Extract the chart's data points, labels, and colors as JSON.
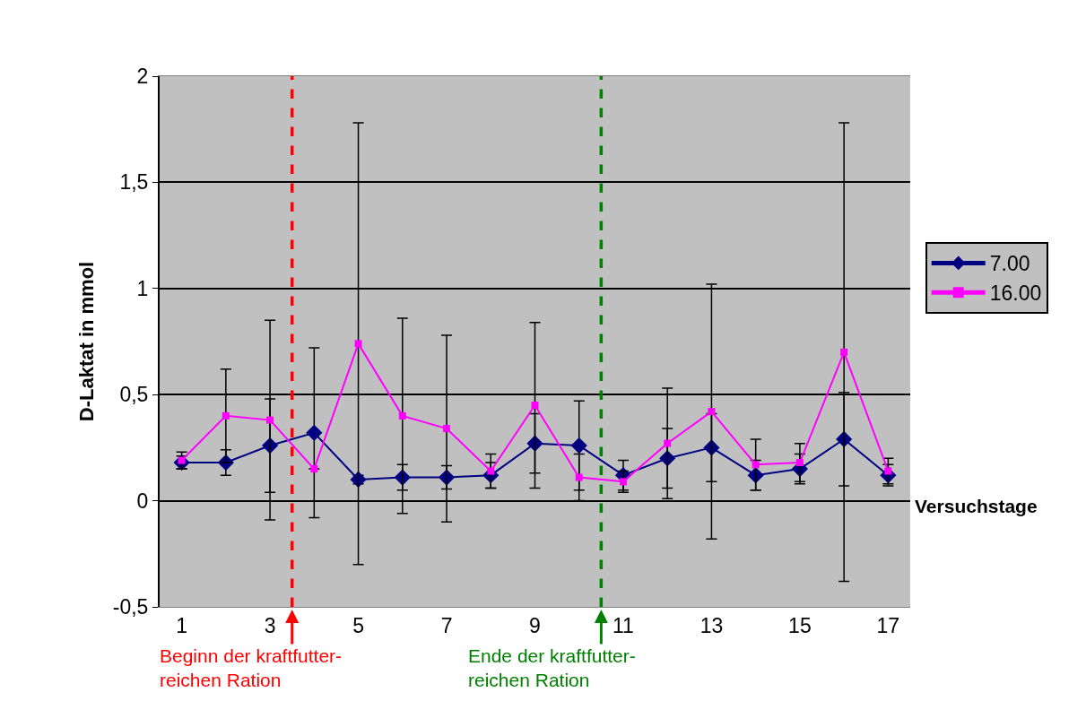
{
  "chart_data": {
    "type": "line",
    "ylabel": "D-Laktat in mmol",
    "xlabel": "Versuchstage",
    "x": [
      1,
      2,
      3,
      4,
      5,
      6,
      7,
      8,
      9,
      10,
      11,
      12,
      13,
      14,
      15,
      16,
      17
    ],
    "xlim": [
      0.5,
      17.5
    ],
    "xticks": [
      1,
      3,
      5,
      7,
      9,
      11,
      13,
      15,
      17
    ],
    "ylim": [
      -0.5,
      2
    ],
    "yticks": [
      {
        "value": -0.5,
        "label": "-0,5"
      },
      0,
      {
        "value": 0.5,
        "label": "0,5"
      },
      1,
      {
        "value": 1.5,
        "label": "1,5"
      },
      2
    ],
    "grid": "y",
    "legend": "right",
    "line_style": "solid",
    "series": [
      {
        "name": "7.00",
        "color": "#000080",
        "marker": "diamond",
        "values": [
          0.18,
          0.18,
          0.26,
          0.32,
          0.1,
          0.11,
          0.11,
          0.12,
          0.27,
          0.26,
          0.12,
          0.2,
          0.25,
          0.12,
          0.15,
          0.29,
          0.12
        ],
        "errors": [
          0.03,
          0.06,
          0.22,
          0.4,
          0.02,
          0.06,
          0.055,
          0.06,
          0.14,
          0.21,
          0.07,
          0.14,
          0.16,
          0.07,
          0.07,
          0.22,
          0.05
        ]
      },
      {
        "name": "16.00",
        "color": "#ff00ff",
        "marker": "square",
        "values": [
          0.19,
          0.4,
          0.38,
          0.15,
          0.74,
          0.4,
          0.34,
          0.14,
          0.45,
          0.11,
          0.09,
          0.27,
          0.42,
          0.17,
          0.18,
          0.7,
          0.14
        ],
        "errors": [
          0.04,
          0.22,
          0.47,
          null,
          1.04,
          0.46,
          0.44,
          0.08,
          0.39,
          0.11,
          0.05,
          0.26,
          0.6,
          0.12,
          0.09,
          1.08,
          0.06
        ]
      }
    ],
    "ref_lines": [
      {
        "axis": "x",
        "value": 3.5,
        "label": "Beginn der kraftfutter-\nreichen Ration",
        "color": "#ff0000",
        "line_style": "dashed"
      },
      {
        "axis": "x",
        "value": 10.5,
        "label": "Ende der kraftfutter-\nreichen Ration",
        "color": "#008000",
        "line_style": "dashed"
      }
    ]
  }
}
